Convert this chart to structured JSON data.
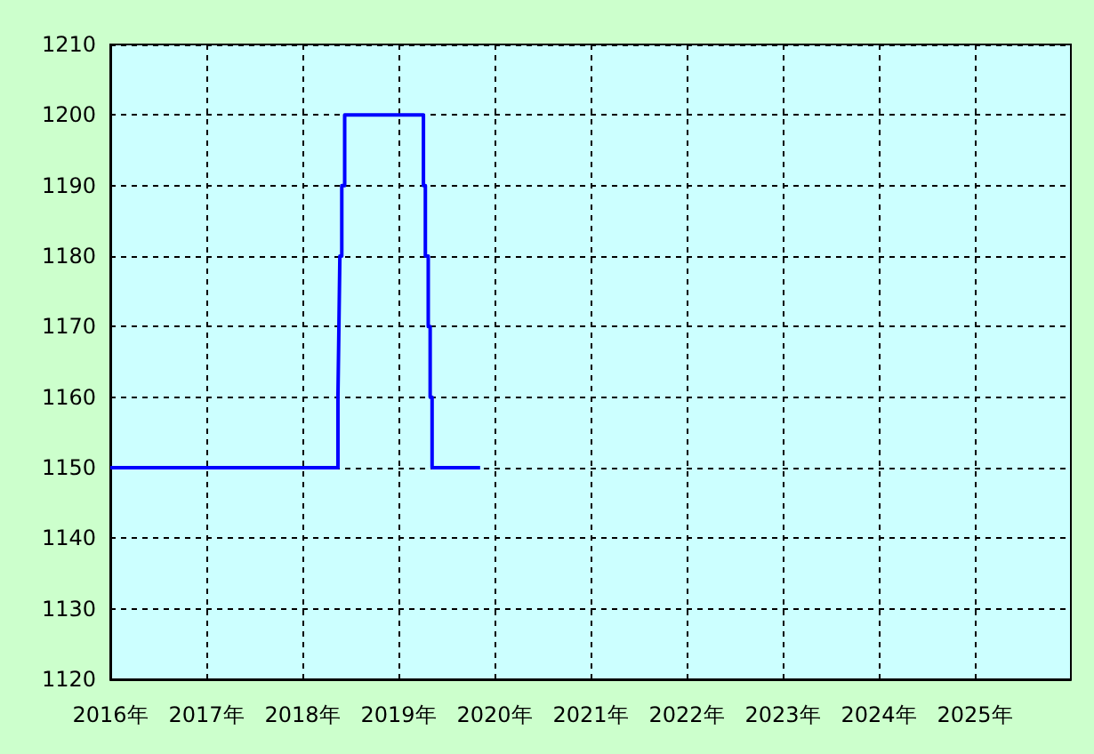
{
  "chart_data": {
    "type": "step",
    "x": [
      2016,
      2018.37,
      2018.38,
      2018.39,
      2018.41,
      2018.44,
      2019.26,
      2019.28,
      2019.31,
      2019.33,
      2019.35,
      2019.85
    ],
    "series": [
      {
        "color": "#0000ff",
        "values": [
          1150,
          1160,
          1170,
          1180,
          1190,
          1200,
          1190,
          1180,
          1170,
          1160,
          1150,
          1150
        ]
      }
    ],
    "xlim": [
      2016,
      2026
    ],
    "xticks": [
      {
        "value": 2016,
        "label": "2016年"
      },
      {
        "value": 2017,
        "label": "2017年"
      },
      {
        "value": 2018,
        "label": "2018年"
      },
      {
        "value": 2019,
        "label": "2019年"
      },
      {
        "value": 2020,
        "label": "2020年"
      },
      {
        "value": 2021,
        "label": "2021年"
      },
      {
        "value": 2022,
        "label": "2022年"
      },
      {
        "value": 2023,
        "label": "2023年"
      },
      {
        "value": 2024,
        "label": "2024年"
      },
      {
        "value": 2025,
        "label": "2025年"
      }
    ],
    "ylim": [
      1120,
      1210
    ],
    "yticks": [
      1120,
      1130,
      1140,
      1150,
      1160,
      1170,
      1180,
      1190,
      1200,
      1210
    ],
    "grid": true,
    "marker": "none",
    "line_style": "solid"
  }
}
